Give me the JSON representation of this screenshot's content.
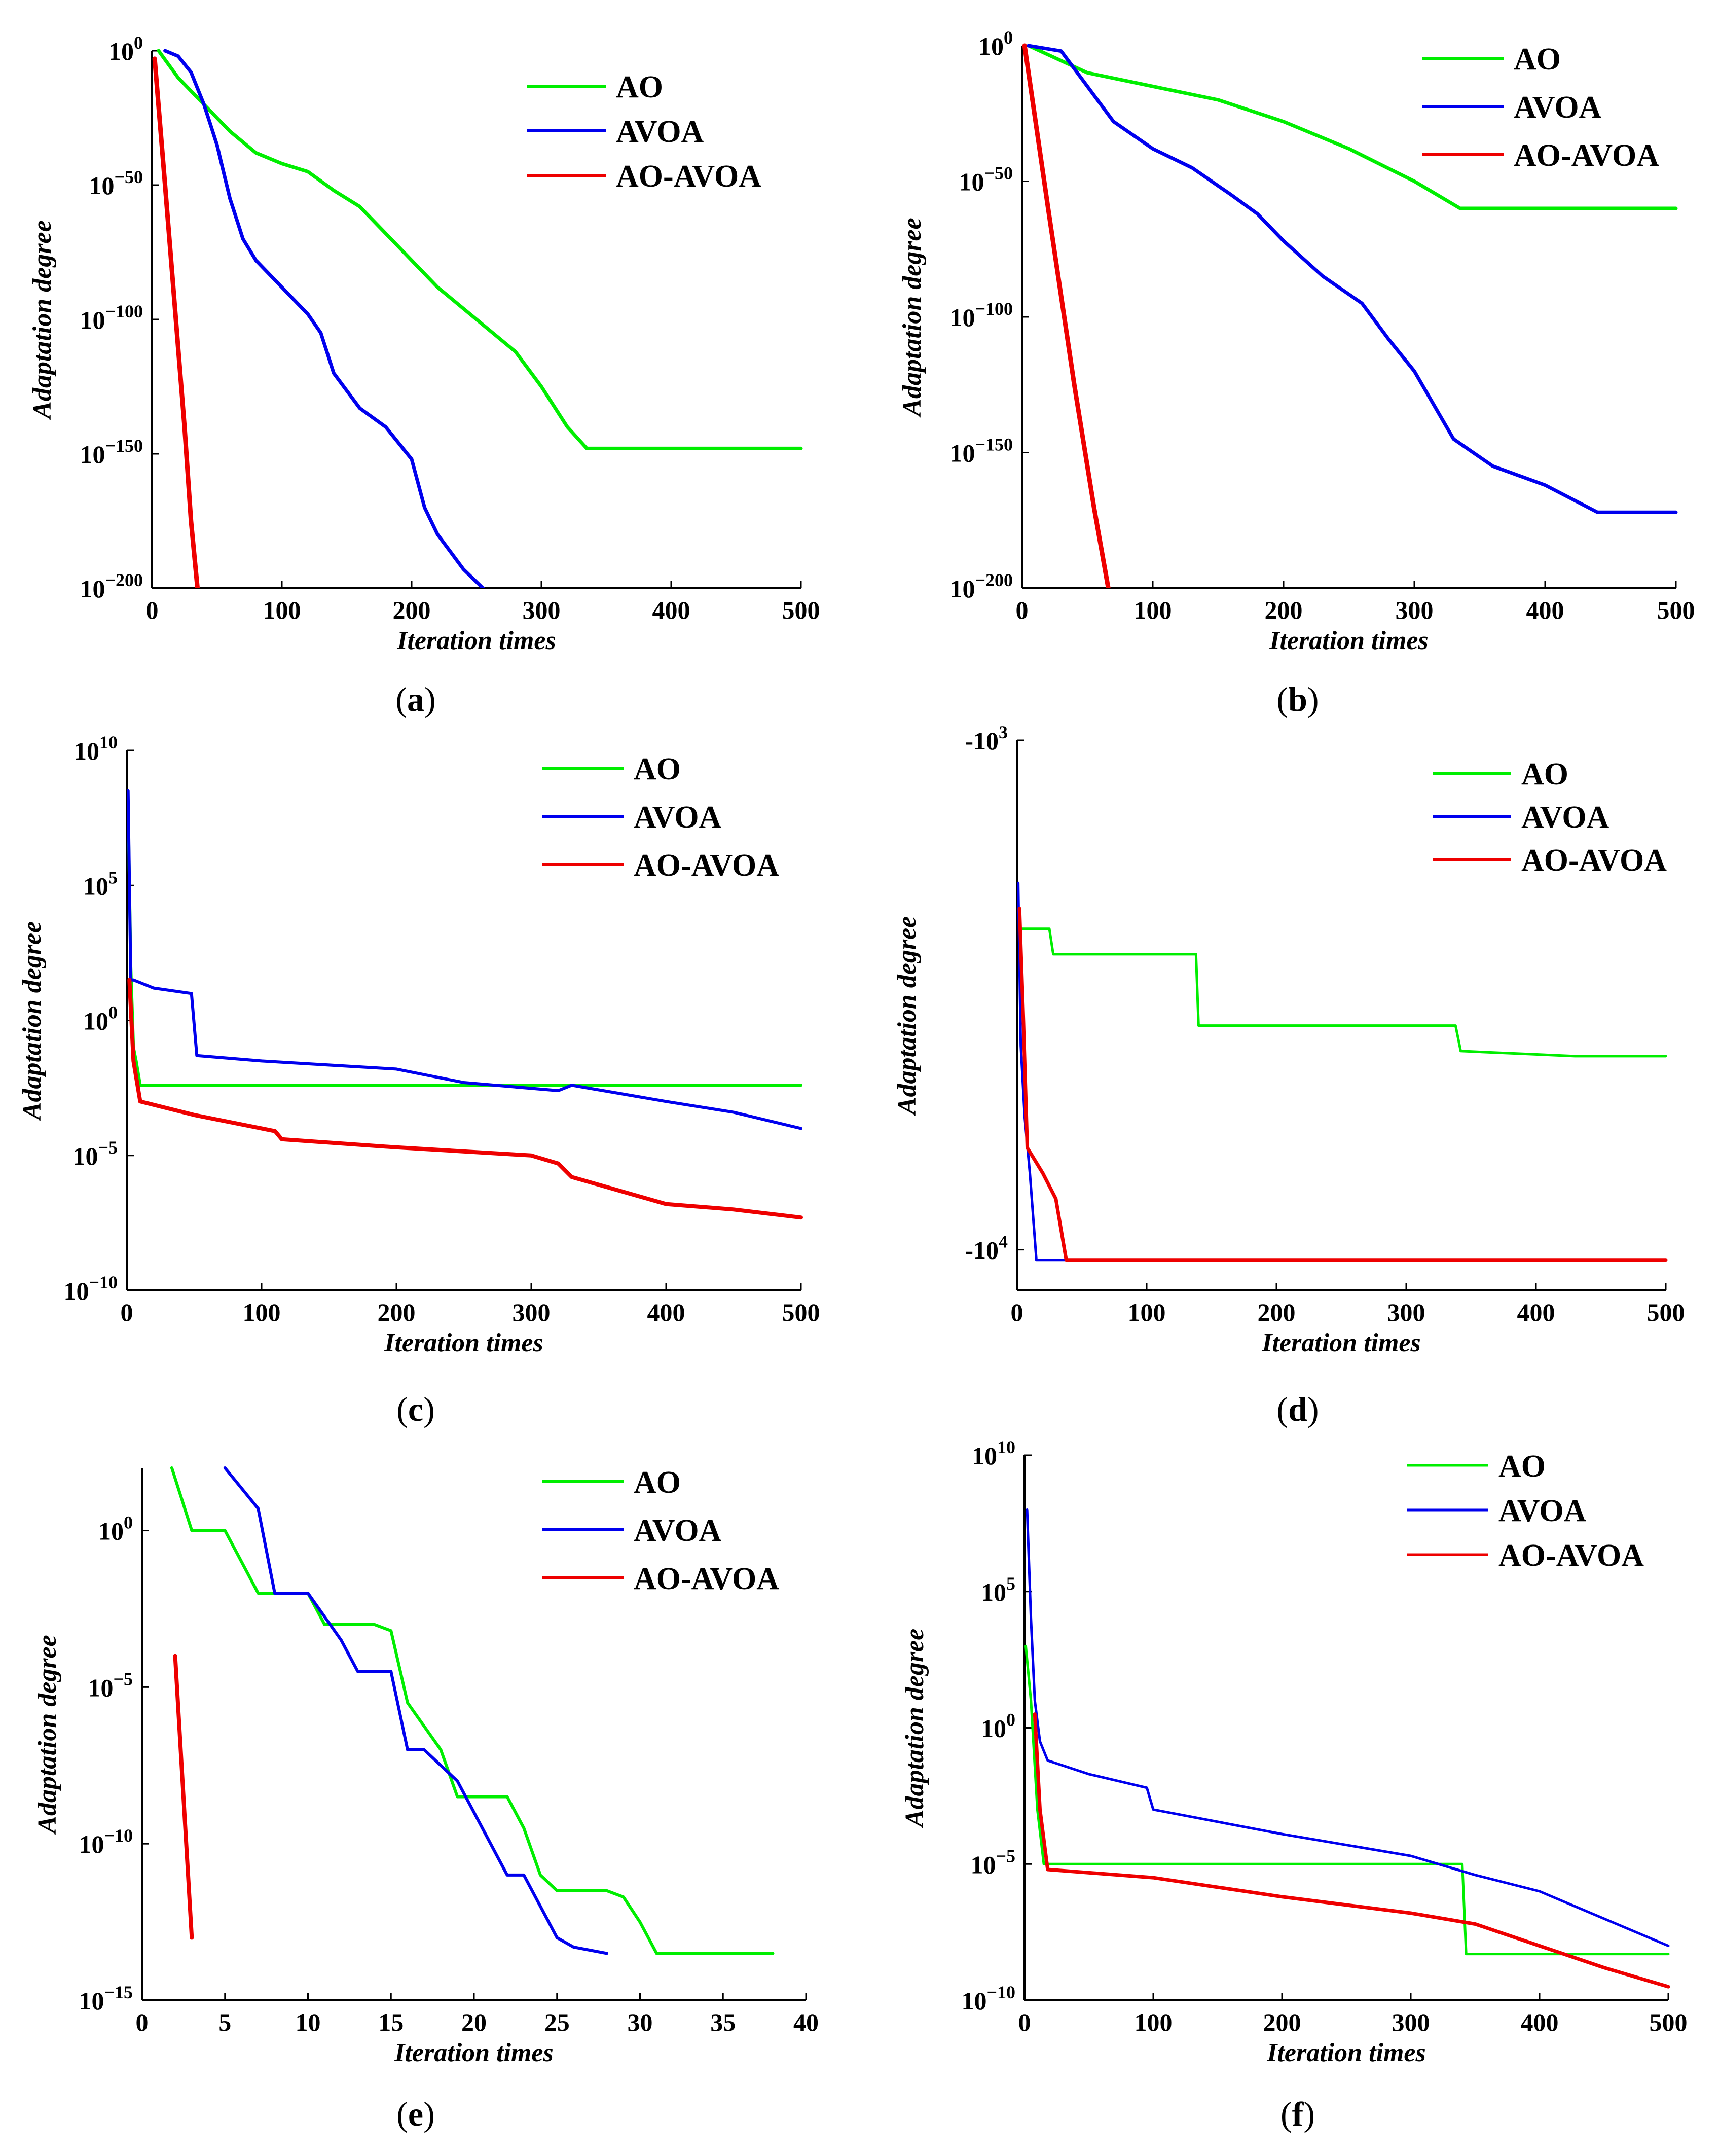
{
  "colors": {
    "AO": "#00ee00",
    "AVOA": "#0000ee",
    "AO-AVOA": "#ee0000"
  },
  "chart_data": [
    {
      "id": "a",
      "type": "line",
      "scale": "log10",
      "xlabel": "Iteration times",
      "ylabel": "Adaptation degree",
      "xlim": [
        0,
        500
      ],
      "ylim": [
        -200,
        0
      ],
      "xticks": [
        0,
        100,
        200,
        300,
        400,
        500
      ],
      "yticks": [
        {
          "v": 0,
          "label": "10^0"
        },
        {
          "v": -50,
          "label": "10^−50"
        },
        {
          "v": -100,
          "label": "10^−100"
        },
        {
          "v": -150,
          "label": "10^−150"
        },
        {
          "v": -200,
          "label": "10^−200"
        }
      ],
      "legend": [
        "AO",
        "AVOA",
        "AO-AVOA"
      ],
      "caption": "a",
      "series": [
        {
          "name": "AO",
          "x": [
            5,
            20,
            40,
            60,
            80,
            100,
            120,
            140,
            160,
            180,
            200,
            220,
            250,
            280,
            300,
            320,
            335,
            500
          ],
          "y": [
            0,
            -10,
            -20,
            -30,
            -38,
            -42,
            -45,
            -52,
            -58,
            -68,
            -78,
            -88,
            -100,
            -112,
            -125,
            -140,
            -148,
            -148
          ]
        },
        {
          "name": "AVOA",
          "x": [
            10,
            20,
            30,
            40,
            50,
            60,
            70,
            80,
            100,
            120,
            130,
            140,
            160,
            180,
            200,
            210,
            220,
            240,
            255
          ],
          "y": [
            0,
            -2,
            -8,
            -20,
            -35,
            -55,
            -70,
            -78,
            -88,
            -98,
            -105,
            -120,
            -133,
            -140,
            -152,
            -170,
            -180,
            -193,
            -200
          ]
        },
        {
          "name": "AO-AVOA",
          "x": [
            2,
            10,
            20,
            25,
            30,
            35
          ],
          "y": [
            -3,
            -50,
            -110,
            -140,
            -175,
            -200
          ]
        }
      ]
    },
    {
      "id": "b",
      "type": "line",
      "scale": "log10",
      "xlabel": "Iteration times",
      "ylabel": "Adaptation degree",
      "xlim": [
        0,
        500
      ],
      "ylim": [
        -200,
        0
      ],
      "xticks": [
        0,
        100,
        200,
        300,
        400,
        500
      ],
      "yticks": [
        {
          "v": 0,
          "label": "10^0"
        },
        {
          "v": -50,
          "label": "10^−50"
        },
        {
          "v": -100,
          "label": "10^−100"
        },
        {
          "v": -150,
          "label": "10^−150"
        },
        {
          "v": -200,
          "label": "10^−200"
        }
      ],
      "legend": [
        "AO",
        "AVOA",
        "AO-AVOA"
      ],
      "caption": "b",
      "series": [
        {
          "name": "AO",
          "x": [
            5,
            50,
            100,
            150,
            200,
            250,
            300,
            335,
            500
          ],
          "y": [
            0,
            -10,
            -15,
            -20,
            -28,
            -38,
            -50,
            -60,
            -60
          ]
        },
        {
          "name": "AVOA",
          "x": [
            5,
            30,
            50,
            70,
            100,
            130,
            160,
            180,
            200,
            230,
            260,
            280,
            300,
            330,
            360,
            400,
            440,
            500
          ],
          "y": [
            0,
            -2,
            -15,
            -28,
            -38,
            -45,
            -55,
            -62,
            -72,
            -85,
            -95,
            -108,
            -120,
            -145,
            -155,
            -162,
            -172,
            -172
          ]
        },
        {
          "name": "AO-AVOA",
          "x": [
            2,
            20,
            40,
            55,
            66
          ],
          "y": [
            0,
            -60,
            -125,
            -170,
            -200
          ]
        }
      ]
    },
    {
      "id": "c",
      "type": "line",
      "scale": "log10",
      "xlabel": "Iteration times",
      "ylabel": "Adaptation degree",
      "xlim": [
        0,
        500
      ],
      "ylim": [
        -10,
        10
      ],
      "xticks": [
        0,
        100,
        200,
        300,
        400,
        500
      ],
      "yticks": [
        {
          "v": 10,
          "label": "10^10"
        },
        {
          "v": 5,
          "label": "10^5"
        },
        {
          "v": 0,
          "label": "10^0"
        },
        {
          "v": -5,
          "label": "10^−5"
        },
        {
          "v": -10,
          "label": "10^−10"
        }
      ],
      "legend": [
        "AO",
        "AVOA",
        "AO-AVOA"
      ],
      "caption": "c",
      "series": [
        {
          "name": "AO",
          "x": [
            1,
            3,
            5,
            7,
            10,
            500
          ],
          "y": [
            8,
            2,
            -1,
            -1.5,
            -2.4,
            -2.4
          ]
        },
        {
          "name": "AVOA",
          "x": [
            1,
            3,
            5,
            20,
            48,
            52,
            100,
            200,
            250,
            320,
            330,
            400,
            450,
            500
          ],
          "y": [
            8.5,
            1.5,
            1.5,
            1.2,
            1.0,
            -1.3,
            -1.5,
            -1.8,
            -2.3,
            -2.6,
            -2.4,
            -3.0,
            -3.4,
            -4.0
          ]
        },
        {
          "name": "AO-AVOA",
          "x": [
            2,
            5,
            10,
            50,
            110,
            115,
            200,
            300,
            320,
            330,
            400,
            450,
            500
          ],
          "y": [
            1.5,
            -1.5,
            -3.0,
            -3.5,
            -4.1,
            -4.4,
            -4.7,
            -5.0,
            -5.3,
            -5.8,
            -6.8,
            -7.0,
            -7.3
          ]
        }
      ]
    },
    {
      "id": "d",
      "type": "line",
      "scale": "log10-negative",
      "xlabel": "Iteration times",
      "ylabel": "Adaptation degree",
      "xlim": [
        0,
        500
      ],
      "ylim": [
        3.0,
        4.08
      ],
      "xticks": [
        0,
        100,
        200,
        300,
        400,
        500
      ],
      "yticks": [
        {
          "v": 3.0,
          "label": "-10^3"
        },
        {
          "v": 4.0,
          "label": "-10^4"
        }
      ],
      "legend": [
        "AO",
        "AVOA",
        "AO-AVOA"
      ],
      "caption": "d",
      "series": [
        {
          "name": "AO",
          "x": [
            3,
            25,
            28,
            138,
            140,
            338,
            342,
            430,
            500
          ],
          "y": [
            3.37,
            3.37,
            3.42,
            3.42,
            3.56,
            3.56,
            3.61,
            3.62,
            3.62
          ]
        },
        {
          "name": "AVOA",
          "x": [
            1,
            3,
            6,
            10,
            15,
            500
          ],
          "y": [
            3.28,
            3.6,
            3.74,
            3.85,
            4.02,
            4.02
          ]
        },
        {
          "name": "AO-AVOA",
          "x": [
            2,
            5,
            8,
            20,
            30,
            38,
            500
          ],
          "y": [
            3.33,
            3.55,
            3.8,
            3.85,
            3.9,
            4.02,
            4.02
          ]
        }
      ]
    },
    {
      "id": "e",
      "type": "line",
      "scale": "log10",
      "xlabel": "Iteration times",
      "ylabel": "Adaptation degree",
      "xlim": [
        0,
        40
      ],
      "ylim": [
        -15,
        2
      ],
      "xticks": [
        0,
        5,
        10,
        15,
        20,
        25,
        30,
        35,
        40
      ],
      "yticks": [
        {
          "v": 0,
          "label": "10^0"
        },
        {
          "v": -5,
          "label": "10^−5"
        },
        {
          "v": -10,
          "label": "10^−10"
        },
        {
          "v": -15,
          "label": "10^−15"
        }
      ],
      "legend": [
        "AO",
        "AVOA",
        "AO-AVOA"
      ],
      "caption": "e",
      "series": [
        {
          "name": "AO",
          "x": [
            1.8,
            3,
            5,
            7,
            10,
            11,
            14,
            15,
            16,
            18,
            19,
            22,
            23,
            24,
            25,
            28,
            29,
            30,
            31,
            38
          ],
          "y": [
            2,
            0,
            0,
            -2,
            -2,
            -3,
            -3,
            -3.2,
            -5.5,
            -7,
            -8.5,
            -8.5,
            -9.5,
            -11,
            -11.5,
            -11.5,
            -11.7,
            -12.5,
            -13.5,
            -13.5
          ]
        },
        {
          "name": "AVOA",
          "x": [
            5,
            7,
            8,
            10,
            12,
            13,
            15,
            16,
            17,
            19,
            21,
            22,
            23,
            25,
            26,
            28
          ],
          "y": [
            2,
            0.7,
            -2,
            -2,
            -3.5,
            -4.5,
            -4.5,
            -7,
            -7,
            -8,
            -10,
            -11,
            -11,
            -13,
            -13.3,
            -13.5
          ]
        },
        {
          "name": "AO-AVOA",
          "x": [
            2,
            3
          ],
          "y": [
            -4,
            -13
          ]
        }
      ]
    },
    {
      "id": "f",
      "type": "line",
      "scale": "log10",
      "xlabel": "Iteration times",
      "ylabel": "Adaptation degree",
      "xlim": [
        0,
        500
      ],
      "ylim": [
        -10,
        10
      ],
      "xticks": [
        0,
        100,
        200,
        300,
        400,
        500
      ],
      "yticks": [
        {
          "v": 10,
          "label": "10^10"
        },
        {
          "v": 5,
          "label": "10^5"
        },
        {
          "v": 0,
          "label": "10^0"
        },
        {
          "v": -5,
          "label": "10^−5"
        },
        {
          "v": -10,
          "label": "10^−10"
        }
      ],
      "legend": [
        "AO",
        "AVOA",
        "AO-AVOA"
      ],
      "caption": "f",
      "series": [
        {
          "name": "AO",
          "x": [
            1,
            5,
            10,
            15,
            340,
            343,
            500
          ],
          "y": [
            3,
            1,
            -3,
            -5,
            -5,
            -8.3,
            -8.3
          ]
        },
        {
          "name": "AVOA",
          "x": [
            2,
            5,
            8,
            12,
            18,
            50,
            95,
            100,
            200,
            300,
            350,
            400,
            450,
            500
          ],
          "y": [
            8,
            4,
            1,
            -0.5,
            -1.2,
            -1.7,
            -2.2,
            -3.0,
            -3.9,
            -4.7,
            -5.4,
            -6.0,
            -7.0,
            -8.0
          ]
        },
        {
          "name": "AO-AVOA",
          "x": [
            8,
            12,
            18,
            100,
            200,
            300,
            350,
            400,
            450,
            500
          ],
          "y": [
            0.5,
            -3,
            -5.2,
            -5.5,
            -6.2,
            -6.8,
            -7.2,
            -8.0,
            -8.8,
            -9.5
          ]
        }
      ]
    }
  ]
}
